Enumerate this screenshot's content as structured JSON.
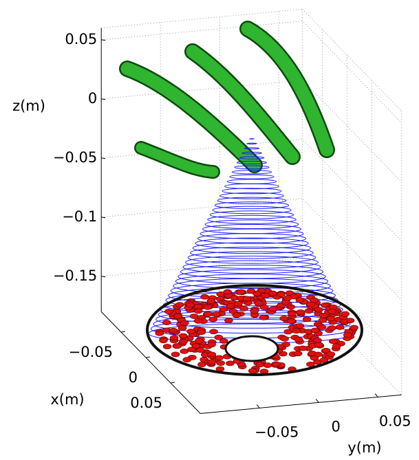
{
  "chart_data": {
    "type": "scene3d",
    "xlabel": "x(m)",
    "ylabel": "y(m)",
    "zlabel": "z(m)",
    "xlim": [
      -0.09,
      0.11
    ],
    "ylim": [
      -0.1,
      0.07
    ],
    "zlim": [
      -0.18,
      0.06
    ],
    "xticks": [
      {
        "value": -0.05,
        "label": "−0.05"
      },
      0,
      0.05
    ],
    "yticks": [
      {
        "value": -0.05,
        "label": "−0.05"
      },
      0,
      0.05
    ],
    "zticks": [
      0.05,
      0,
      {
        "value": -0.05,
        "label": "−0.05"
      },
      {
        "value": -0.1,
        "label": "−0.1"
      },
      {
        "value": -0.15,
        "label": "−0.15"
      }
    ],
    "grid": true
  }
}
